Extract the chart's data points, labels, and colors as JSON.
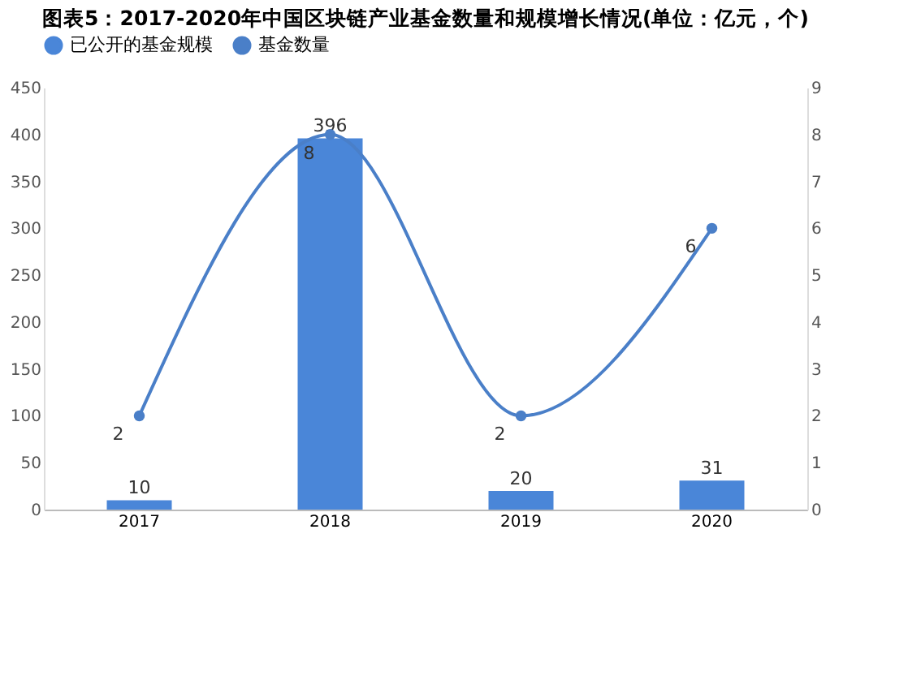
{
  "chart_data": {
    "type": "bar",
    "title": "图表5：2017-2020年中国区块链产业基金数量和规模增长情况(单位：亿元，个)",
    "categories": [
      "2017",
      "2018",
      "2019",
      "2020"
    ],
    "series": [
      {
        "name": "已公开的基金规模",
        "color": "#4a86d8",
        "values": [
          10,
          396,
          20,
          31
        ]
      },
      {
        "name": "基金数量",
        "color": "#4a7fc8",
        "type": "line",
        "axis": "y2",
        "marker": "circle",
        "values": [
          2,
          8,
          2,
          6
        ]
      }
    ],
    "ylim": [
      0,
      450
    ],
    "yticks": [
      0,
      50,
      100,
      150,
      200,
      250,
      300,
      350,
      400,
      450
    ],
    "y2lim": [
      0,
      9
    ],
    "y2ticks": [
      0,
      1,
      2,
      3,
      4,
      5,
      6,
      7,
      8,
      9
    ],
    "data_labels": true,
    "legend": "top",
    "grid": false
  }
}
